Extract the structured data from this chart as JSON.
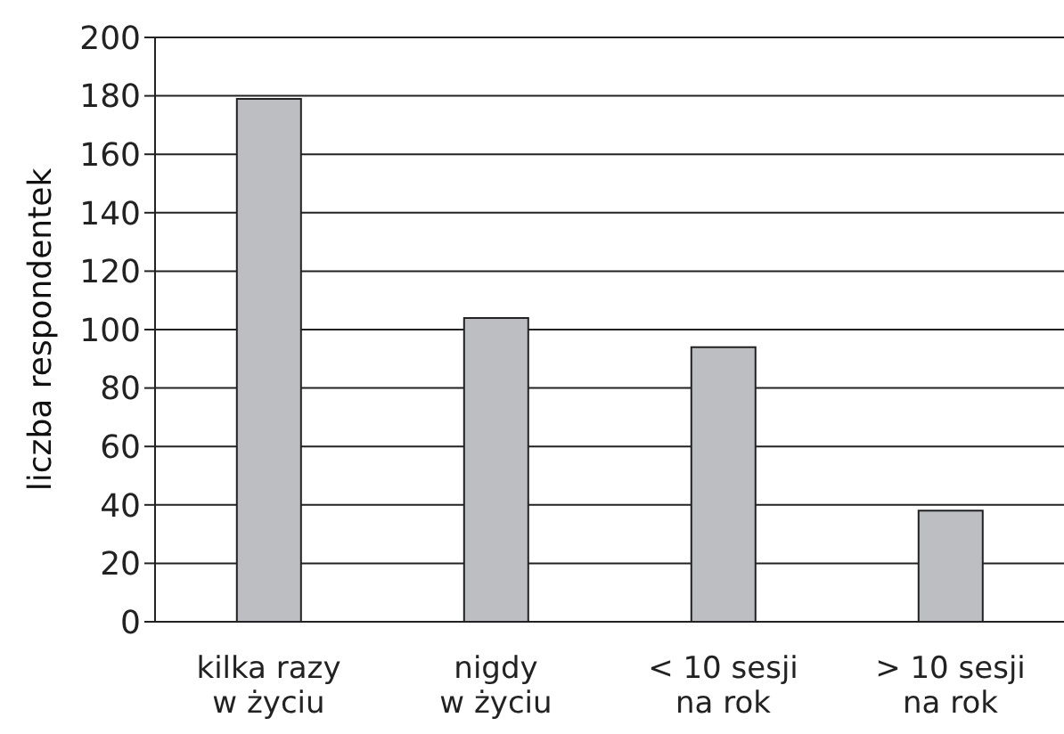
{
  "chart_data": {
    "type": "bar",
    "ylabel": "liczba respondentek",
    "categories": [
      "kilka razy\nw życiu",
      "nigdy\nw życiu",
      "< 10 sesji\nna rok",
      "> 10 sesji\nna rok"
    ],
    "values": [
      179,
      104,
      94,
      38
    ],
    "color": "#bdbec2",
    "ylim": [
      0,
      200
    ],
    "yticks": [
      0,
      20,
      40,
      60,
      80,
      100,
      120,
      140,
      160,
      180,
      200
    ],
    "grid": "y"
  }
}
